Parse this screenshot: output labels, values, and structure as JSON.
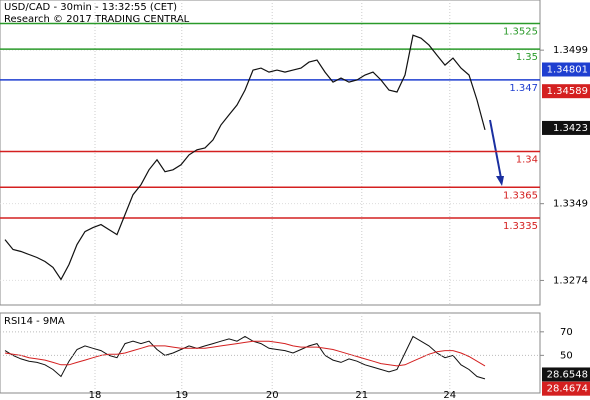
{
  "chart_data": {
    "type": "financial",
    "title": "USD/CAD - 30min - 13:32:55 (CET)",
    "subtitle": "Research © 2017 TRADING CENTRAL",
    "x": [
      0,
      1,
      2,
      3,
      4,
      5,
      6,
      7,
      8,
      9,
      10,
      11,
      12,
      13,
      14,
      15,
      16,
      17,
      18,
      19,
      20,
      21,
      22,
      23,
      24,
      25,
      26,
      27,
      28,
      29,
      30,
      31,
      32,
      33,
      34,
      35,
      36,
      37,
      38,
      39,
      40,
      41,
      42,
      43,
      44,
      45,
      46,
      47,
      48,
      49,
      50,
      51,
      52,
      53,
      54,
      55,
      56,
      57,
      58,
      59,
      60
    ],
    "xlim": [
      -0.625,
      66.875
    ],
    "xticks": [
      {
        "value": 11.25,
        "label": "18"
      },
      {
        "value": 22.1,
        "label": "19"
      },
      {
        "value": 33.4,
        "label": "20"
      },
      {
        "value": 44.6,
        "label": "21"
      },
      {
        "value": 55.6,
        "label": "24"
      }
    ],
    "ylim": [
      1.325,
      1.3548
    ],
    "yticks": [
      1.3274,
      1.3349,
      1.3499
    ],
    "grid": true,
    "series": [
      {
        "color": "#111111",
        "values": [
          1.33139,
          1.33042,
          1.33023,
          1.32993,
          1.32964,
          1.32925,
          1.32867,
          1.3275,
          1.32896,
          1.33091,
          1.33217,
          1.33256,
          1.33286,
          1.33237,
          1.33188,
          1.33383,
          1.33578,
          1.33675,
          1.33821,
          1.33919,
          1.33802,
          1.33821,
          1.3387,
          1.33967,
          1.34016,
          1.34035,
          1.34113,
          1.3426,
          1.34357,
          1.34454,
          1.346,
          1.34795,
          1.34815,
          1.34776,
          1.34795,
          1.34776,
          1.34795,
          1.34815,
          1.34873,
          1.34893,
          1.34776,
          1.34678,
          1.34717,
          1.34678,
          1.34698,
          1.34747,
          1.34776,
          1.34698,
          1.346,
          1.34581,
          1.34747,
          1.35136,
          1.35107,
          1.35039,
          1.34941,
          1.34844,
          1.34912,
          1.34815,
          1.34747,
          1.34503,
          1.34211
        ]
      }
    ],
    "levels": [
      {
        "value": 1.3525,
        "label": "1.3525",
        "color": "#2a9a2a"
      },
      {
        "value": 1.35,
        "label": "1.35",
        "color": "#2a9a2a"
      },
      {
        "value": 1.347,
        "label": "1.347",
        "color": "#1f3fd0"
      },
      {
        "value": 1.34,
        "label": "1.34",
        "color": "#d42020"
      },
      {
        "value": 1.3365,
        "label": "1.3365",
        "color": "#d42020"
      },
      {
        "value": 1.3335,
        "label": "1.3335",
        "color": "#d42020"
      }
    ],
    "price_tags": [
      {
        "value": 1.34801,
        "color": "#1f3fd0"
      },
      {
        "value": 1.34589,
        "color": "#d42020"
      },
      {
        "value": 1.3423,
        "color": "#111111"
      }
    ],
    "rsi": {
      "title": "RSI14 - 9MA",
      "ylim": [
        18,
        86
      ],
      "yticks": [
        50,
        70
      ],
      "series": [
        {
          "color": "#111111",
          "values": [
            54,
            50,
            47,
            45,
            44,
            42,
            38,
            32,
            45,
            55,
            58,
            56,
            54,
            50,
            48,
            60,
            62,
            60,
            62,
            55,
            50,
            52,
            55,
            58,
            56,
            58,
            60,
            62,
            64,
            62,
            66,
            62,
            60,
            56,
            55,
            54,
            52,
            55,
            58,
            60,
            50,
            46,
            44,
            47,
            45,
            42,
            40,
            38,
            36,
            38,
            52,
            66,
            62,
            58,
            52,
            48,
            50,
            42,
            38,
            32,
            30
          ]
        },
        {
          "color": "#d42020",
          "values": [
            52,
            51,
            50,
            48,
            47,
            46,
            44,
            42,
            42,
            44,
            46,
            48,
            50,
            51,
            51,
            52,
            54,
            56,
            58,
            58,
            58,
            57,
            56,
            56,
            56,
            56,
            57,
            58,
            59,
            60,
            61,
            62,
            62,
            62,
            61,
            60,
            58,
            57,
            57,
            57,
            56,
            55,
            53,
            51,
            49,
            47,
            45,
            43,
            42,
            41,
            42,
            45,
            48,
            51,
            53,
            54,
            54,
            52,
            49,
            45,
            41
          ]
        }
      ],
      "tags": [
        {
          "value": 28.6548,
          "color": "#111111"
        },
        {
          "value": 28.4674,
          "color": "#d42020"
        }
      ]
    }
  }
}
